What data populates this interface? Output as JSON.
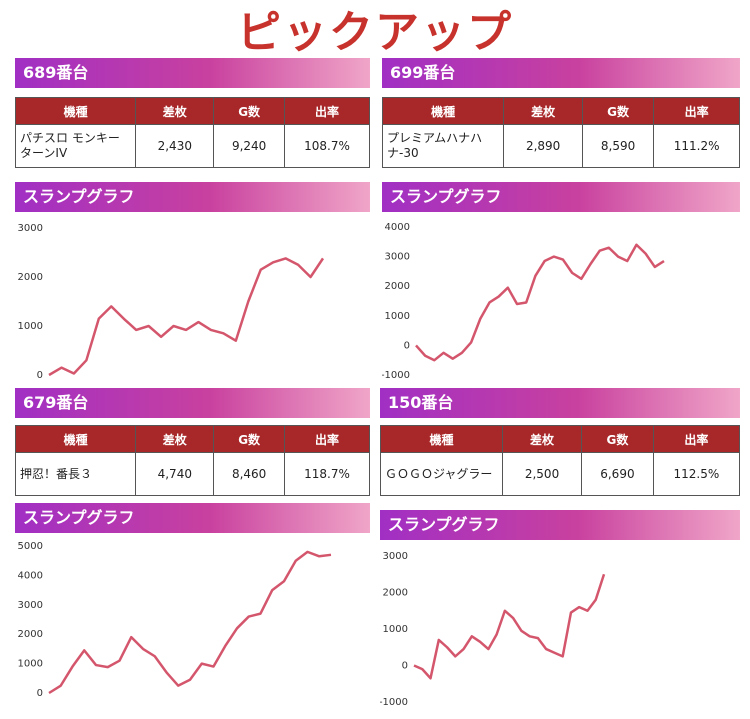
{
  "title": "ピックアップ",
  "panels": [
    {
      "machine": "689番台",
      "table": {
        "header": [
          "機種",
          "差枚",
          "G数",
          "出率"
        ],
        "row": [
          "パチスロ モンキーターンIV",
          "2,430",
          "9,240",
          "108.7%"
        ]
      }
    },
    {
      "machine": "699番台",
      "table": {
        "header": [
          "機種",
          "差枚",
          "G数",
          "出率"
        ],
        "row": [
          "プレミアムハナハナ-30",
          "2,890",
          "8,590",
          "111.2%"
        ]
      }
    },
    {
      "machine": "679番台",
      "table": {
        "header": [
          "機種",
          "差枚",
          "G数",
          "出率"
        ],
        "row": [
          "押忍！番長３",
          "4,740",
          "8,460",
          "118.7%"
        ]
      }
    },
    {
      "machine": "150番台",
      "table": {
        "header": [
          "機種",
          "差枚",
          "G数",
          "出率"
        ],
        "row": [
          "ＧＯＧＯジャグラー",
          "2,500",
          "6,690",
          "112.5%"
        ]
      }
    }
  ],
  "chart_data": [
    {
      "type": "line",
      "title": "スランプグラフ",
      "color": "#d4566c",
      "grid": false,
      "ylim": [
        0,
        3000
      ],
      "yticks": [
        0,
        1000,
        2000,
        3000
      ],
      "values": [
        0,
        150,
        30,
        300,
        1150,
        1400,
        1150,
        920,
        1000,
        780,
        1000,
        920,
        1080,
        920,
        850,
        700,
        1500,
        2150,
        2300,
        2380,
        2250,
        2000,
        2380
      ]
    },
    {
      "type": "line",
      "title": "スランプグラフ",
      "color": "#d4566c",
      "grid": false,
      "ylim": [
        -1000,
        4000
      ],
      "yticks": [
        -1000,
        0,
        1000,
        2000,
        3000,
        4000
      ],
      "values": [
        0,
        -350,
        -500,
        -250,
        -450,
        -250,
        100,
        900,
        1450,
        1650,
        1950,
        1400,
        1450,
        2350,
        2850,
        3000,
        2900,
        2450,
        2250,
        2750,
        3200,
        3300,
        3000,
        2850,
        3400,
        3100,
        2650,
        2850
      ]
    },
    {
      "type": "line",
      "title": "スランプグラフ",
      "color": "#d4566c",
      "grid": false,
      "ylim": [
        0,
        5000
      ],
      "yticks": [
        0,
        1000,
        2000,
        3000,
        4000,
        5000
      ],
      "values": [
        0,
        250,
        900,
        1450,
        950,
        880,
        1100,
        1900,
        1500,
        1250,
        700,
        250,
        450,
        1000,
        900,
        1600,
        2200,
        2600,
        2700,
        3500,
        3800,
        4500,
        4800,
        4650,
        4700
      ]
    },
    {
      "type": "line",
      "title": "スランプグラフ",
      "color": "#d4566c",
      "grid": false,
      "ylim": [
        -1000,
        3000
      ],
      "yticks": [
        -1000,
        0,
        1000,
        2000,
        3000
      ],
      "values": [
        0,
        -100,
        -350,
        700,
        500,
        250,
        450,
        800,
        650,
        450,
        850,
        1500,
        1300,
        950,
        800,
        750,
        450,
        350,
        250,
        1450,
        1600,
        1500,
        1800,
        2500
      ]
    }
  ]
}
